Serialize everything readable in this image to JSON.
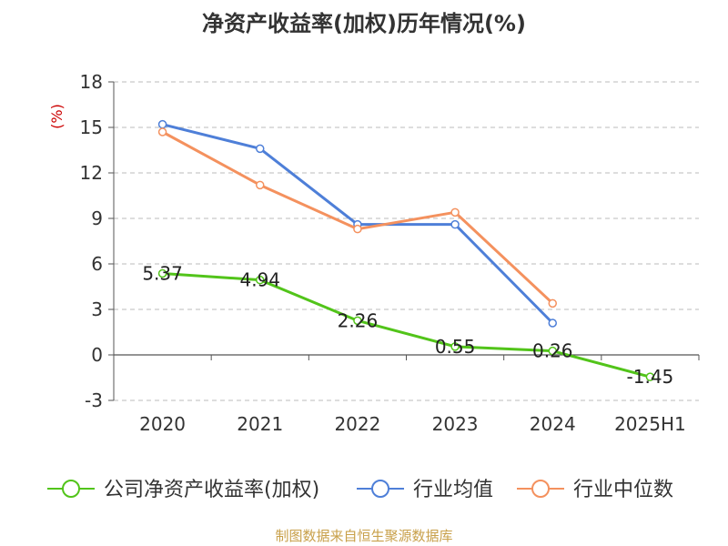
{
  "chart_data": {
    "type": "line",
    "title": "净资产收益率(加权)历年情况(%)",
    "ylabel": "(%)",
    "xlabel": "",
    "categories": [
      "2020",
      "2021",
      "2022",
      "2023",
      "2024",
      "2025H1"
    ],
    "ylim": [
      -3,
      18
    ],
    "yticks": [
      -3,
      0,
      3,
      6,
      9,
      12,
      15,
      18
    ],
    "grid": true,
    "legend_position": "bottom",
    "series": [
      {
        "name": "公司净资产收益率(加权)",
        "color": "#52c41a",
        "values": [
          5.37,
          4.94,
          2.26,
          0.55,
          0.26,
          -1.45
        ],
        "labels": [
          "5.37",
          "4.94",
          "2.26",
          "0.55",
          "0.26",
          "-1.45"
        ]
      },
      {
        "name": "行业均值",
        "color": "#4e7fd8",
        "values": [
          15.2,
          13.6,
          8.6,
          8.6,
          2.1,
          null
        ]
      },
      {
        "name": "行业中位数",
        "color": "#f4915e",
        "values": [
          14.7,
          11.2,
          8.3,
          9.4,
          3.4,
          null
        ]
      }
    ]
  },
  "footer": {
    "source": "制图数据来自恒生聚源数据库"
  }
}
